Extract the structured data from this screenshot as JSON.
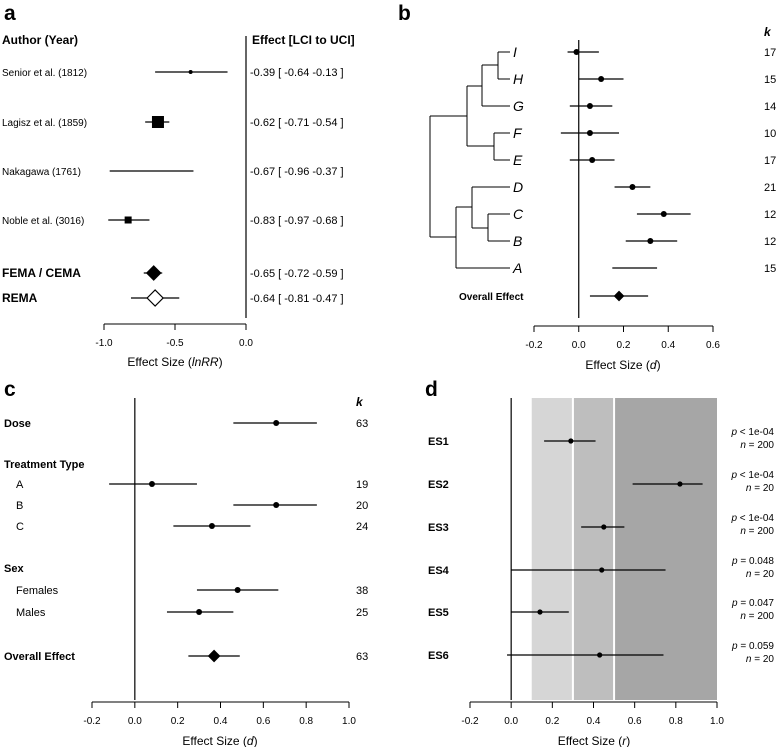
{
  "chart_data": [
    {
      "panel": "a",
      "type": "forest",
      "col_author": "Author (Year)",
      "col_effect": "Effect [LCI to UCI]",
      "xlabel_prefix": "Effect Size (",
      "xlabel_var": "lnRR",
      "xlabel_suffix": ")",
      "xlim": [
        -1.0,
        0.0
      ],
      "xticks": [
        "-1.0",
        "-0.5",
        "0.0"
      ],
      "rows": [
        {
          "label": "Senior et al. (1812)",
          "bold": false,
          "est": -0.39,
          "lci": -0.64,
          "uci": -0.13,
          "marker": "dot",
          "text": "-0.39 [ -0.64  -0.13 ]"
        },
        {
          "label": "Lagisz et al.  (1859)",
          "bold": false,
          "est": -0.62,
          "lci": -0.71,
          "uci": -0.54,
          "marker": "square-large",
          "text": "-0.62 [ -0.71  -0.54 ]"
        },
        {
          "label": "Nakagawa (1761)",
          "bold": false,
          "est": -0.67,
          "lci": -0.96,
          "uci": -0.37,
          "marker": "none",
          "text": "-0.67 [ -0.96  -0.37 ]"
        },
        {
          "label": "Noble et al. (3016)",
          "bold": false,
          "est": -0.83,
          "lci": -0.97,
          "uci": -0.68,
          "marker": "square-small",
          "text": "-0.83 [ -0.97  -0.68 ]"
        },
        {
          "label": "FEMA / CEMA",
          "bold": true,
          "est": -0.65,
          "lci": -0.72,
          "uci": -0.59,
          "marker": "diamond-filled",
          "text": "-0.65 [ -0.72  -0.59 ]"
        },
        {
          "label": "REMA",
          "bold": true,
          "est": -0.64,
          "lci": -0.81,
          "uci": -0.47,
          "marker": "diamond-open",
          "text": "-0.64 [ -0.81  -0.47 ]"
        }
      ]
    },
    {
      "panel": "b",
      "type": "forest-phylogeny",
      "k_header": "k",
      "xlabel_prefix": "Effect Size (",
      "xlabel_var": "d",
      "xlabel_suffix": ")",
      "xlim": [
        -0.2,
        0.6
      ],
      "xticks": [
        "-0.2",
        "0.0",
        "0.2",
        "0.4",
        "0.6"
      ],
      "rows": [
        {
          "label": "I",
          "est": -0.01,
          "lci": -0.05,
          "uci": 0.09,
          "k": "17"
        },
        {
          "label": "H",
          "est": 0.1,
          "lci": 0.0,
          "uci": 0.2,
          "k": "15"
        },
        {
          "label": "G",
          "est": 0.05,
          "lci": -0.04,
          "uci": 0.15,
          "k": "14"
        },
        {
          "label": "F",
          "est": 0.05,
          "lci": -0.08,
          "uci": 0.18,
          "k": "10"
        },
        {
          "label": "E",
          "est": 0.06,
          "lci": -0.04,
          "uci": 0.16,
          "k": "17"
        },
        {
          "label": "D",
          "est": 0.24,
          "lci": 0.16,
          "uci": 0.32,
          "k": "21"
        },
        {
          "label": "C",
          "est": 0.38,
          "lci": 0.26,
          "uci": 0.5,
          "k": "12"
        },
        {
          "label": "B",
          "est": 0.32,
          "lci": 0.21,
          "uci": 0.44,
          "k": "12"
        },
        {
          "label": "A",
          "est": null,
          "lci": 0.15,
          "uci": 0.35,
          "k": "15"
        }
      ],
      "overall": {
        "label": "Overall Effect",
        "est": 0.18,
        "lci": 0.05,
        "uci": 0.31
      }
    },
    {
      "panel": "c",
      "type": "forest",
      "k_header": "k",
      "xlabel_prefix": "Effect Size (",
      "xlabel_var": "d",
      "xlabel_suffix": ")",
      "xlim": [
        -0.2,
        1.0
      ],
      "xticks": [
        "-0.2",
        "0.0",
        "0.2",
        "0.4",
        "0.6",
        "0.8",
        "1.0"
      ],
      "rows": [
        {
          "label": "Dose",
          "bold": true,
          "indent": false,
          "est": 0.66,
          "lci": 0.46,
          "uci": 0.85,
          "k": "63",
          "marker": "dot"
        },
        {
          "label": "Treatment Type",
          "bold": true,
          "indent": false,
          "header": true
        },
        {
          "label": "A",
          "bold": false,
          "indent": true,
          "est": 0.08,
          "lci": -0.12,
          "uci": 0.29,
          "k": "19",
          "marker": "dot"
        },
        {
          "label": "B",
          "bold": false,
          "indent": true,
          "est": 0.66,
          "lci": 0.46,
          "uci": 0.85,
          "k": "20",
          "marker": "dot"
        },
        {
          "label": "C",
          "bold": false,
          "indent": true,
          "est": 0.36,
          "lci": 0.18,
          "uci": 0.54,
          "k": "24",
          "marker": "dot"
        },
        {
          "label": "Sex",
          "bold": true,
          "indent": false,
          "header": true
        },
        {
          "label": "Females",
          "bold": false,
          "indent": true,
          "est": 0.48,
          "lci": 0.29,
          "uci": 0.67,
          "k": "38",
          "marker": "dot"
        },
        {
          "label": "Males",
          "bold": false,
          "indent": true,
          "est": 0.3,
          "lci": 0.15,
          "uci": 0.46,
          "k": "25",
          "marker": "dot"
        },
        {
          "label": "Overall Effect",
          "bold": true,
          "indent": false,
          "est": 0.37,
          "lci": 0.25,
          "uci": 0.49,
          "k": "63",
          "marker": "diamond-filled"
        }
      ]
    },
    {
      "panel": "d",
      "type": "forest",
      "xlabel_prefix": "Effect Size (",
      "xlabel_var": "r",
      "xlabel_suffix": ")",
      "xlim": [
        -0.2,
        1.0
      ],
      "xticks": [
        "-0.2",
        "0.0",
        "0.2",
        "0.4",
        "0.6",
        "0.8",
        "1.0"
      ],
      "bands": [
        {
          "from": 0.1,
          "to": 0.3,
          "color": "#d6d6d6"
        },
        {
          "from": 0.3,
          "to": 0.5,
          "color": "#bebebe"
        },
        {
          "from": 0.5,
          "to": 1.0,
          "color": "#a6a6a6"
        }
      ],
      "rows": [
        {
          "label": "ES1",
          "est": 0.29,
          "lci": 0.16,
          "uci": 0.41,
          "p": "< 1e-04",
          "n": "200"
        },
        {
          "label": "ES2",
          "est": 0.82,
          "lci": 0.59,
          "uci": 0.93,
          "p": "< 1e-04",
          "n": "20"
        },
        {
          "label": "ES3",
          "est": 0.45,
          "lci": 0.34,
          "uci": 0.55,
          "p": "< 1e-04",
          "n": "200"
        },
        {
          "label": "ES4",
          "est": 0.44,
          "lci": 0.0,
          "uci": 0.75,
          "p": "= 0.048",
          "n": "20"
        },
        {
          "label": "ES5",
          "est": 0.14,
          "lci": 0.0,
          "uci": 0.28,
          "p": "= 0.047",
          "n": "200"
        },
        {
          "label": "ES6",
          "est": 0.43,
          "lci": -0.02,
          "uci": 0.74,
          "p": "= 0.059",
          "n": "20"
        }
      ]
    }
  ]
}
